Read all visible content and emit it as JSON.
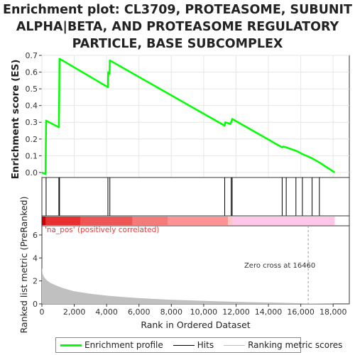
{
  "title_lines": [
    "Enrichment plot: CL3709, PROTEASOME, SUBUNIT",
    "ALPHA|BETA, AND PROTEASOME REGULATORY",
    "PARTICLE, BASE SUBCOMPLEX"
  ],
  "colors": {
    "es_line": "#00ff00",
    "hits": "#000000",
    "metric_fill": "#c0c0c0",
    "pos_label": "#e04040",
    "band_red_dark": "#e02020",
    "band_red": "#f06060",
    "band_salmon": "#ff9090",
    "band_pink": "#ffc0e0"
  },
  "legend": {
    "items": [
      {
        "label": "Enrichment profile",
        "color": "#00ff00"
      },
      {
        "label": "Hits",
        "color": "#000000"
      },
      {
        "label": "Ranking metric scores",
        "color": "#c0c0c0"
      }
    ]
  },
  "annotations": {
    "pos_label": "'na_pos' (positively correlated)",
    "zero_cross": "Zero cross at 16460"
  },
  "chart_data": [
    {
      "type": "line",
      "name": "enrichment_profile",
      "ylabel": "Enrichment score (ES)",
      "xlim": [
        0,
        19000
      ],
      "ylim": [
        -0.03,
        0.7
      ],
      "yticks": [
        0.0,
        0.1,
        0.2,
        0.3,
        0.4,
        0.5,
        0.6,
        0.7
      ],
      "ytick_labels": [
        "0.0",
        "0.1",
        "0.2",
        "0.3",
        "0.4",
        "0.5",
        "0.6",
        "0.7"
      ],
      "grid": true,
      "points": [
        [
          0,
          0.0
        ],
        [
          230,
          -0.01
        ],
        [
          260,
          0.31
        ],
        [
          1050,
          0.27
        ],
        [
          1070,
          0.47
        ],
        [
          1090,
          0.68
        ],
        [
          4080,
          0.51
        ],
        [
          4100,
          0.6
        ],
        [
          4180,
          0.59
        ],
        [
          4200,
          0.67
        ],
        [
          11300,
          0.28
        ],
        [
          11330,
          0.3
        ],
        [
          11650,
          0.29
        ],
        [
          11700,
          0.3
        ],
        [
          11760,
          0.32
        ],
        [
          14850,
          0.15
        ],
        [
          14900,
          0.155
        ],
        [
          15100,
          0.15
        ],
        [
          15700,
          0.13
        ],
        [
          16100,
          0.11
        ],
        [
          16700,
          0.085
        ],
        [
          17150,
          0.06
        ],
        [
          18100,
          0.0
        ]
      ]
    },
    {
      "type": "scatter",
      "name": "hits",
      "x": [
        260,
        1050,
        1090,
        4080,
        4200,
        11300,
        11700,
        11760,
        14850,
        15100,
        15700,
        16100,
        16700,
        17150
      ]
    },
    {
      "type": "area",
      "name": "ranked_list_metric",
      "xlabel": "Rank in Ordered Dataset",
      "ylabel": "Ranked list metric (PreRanked)",
      "xlim": [
        0,
        19000
      ],
      "ylim": [
        0,
        6.8
      ],
      "xticks": [
        0,
        2000,
        4000,
        6000,
        8000,
        10000,
        12000,
        14000,
        16000,
        18000
      ],
      "xtick_labels": [
        "0",
        "2,000",
        "4,000",
        "6,000",
        "8,000",
        "10,000",
        "12,000",
        "14,000",
        "16,000",
        "18,000"
      ],
      "yticks": [
        0,
        2,
        4,
        6
      ],
      "ytick_labels": [
        "0",
        "2",
        "4",
        "6"
      ],
      "zero_cross": 16460,
      "x": [
        0,
        50,
        150,
        300,
        500,
        800,
        1200,
        1600,
        2000,
        3000,
        4000,
        5000,
        6000,
        8000,
        10000,
        12000,
        14000,
        16000,
        16460,
        18000
      ],
      "values": [
        3.2,
        2.6,
        2.3,
        2.05,
        1.85,
        1.65,
        1.42,
        1.25,
        1.1,
        0.88,
        0.72,
        0.6,
        0.5,
        0.36,
        0.26,
        0.18,
        0.12,
        0.06,
        0.03,
        0.01
      ]
    },
    {
      "type": "heatmap",
      "name": "rank_colorbar",
      "segments": [
        {
          "from": 0,
          "to": 250,
          "color": "#cc0000"
        },
        {
          "from": 250,
          "to": 2400,
          "color": "#e83030"
        },
        {
          "from": 2400,
          "to": 5600,
          "color": "#ee5555"
        },
        {
          "from": 5600,
          "to": 7800,
          "color": "#f57a7a"
        },
        {
          "from": 7800,
          "to": 11500,
          "color": "#ff9393"
        },
        {
          "from": 11500,
          "to": 11800,
          "color": "#ffc6c6"
        },
        {
          "from": 11800,
          "to": 18100,
          "color": "#ffc6e8"
        }
      ]
    }
  ]
}
